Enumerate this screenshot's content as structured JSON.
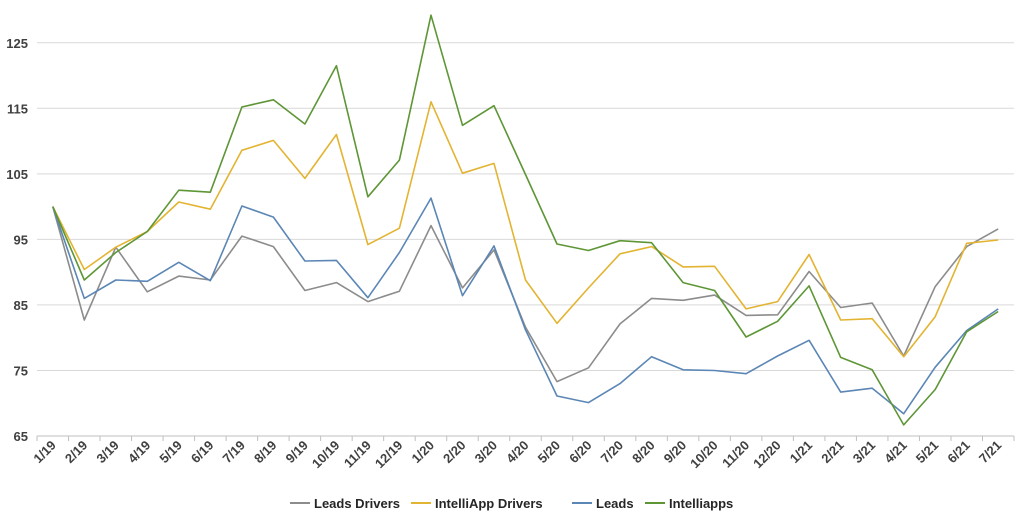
{
  "chart_data": {
    "type": "line",
    "categories": [
      "1/19",
      "2/19",
      "3/19",
      "4/19",
      "5/19",
      "6/19",
      "7/19",
      "8/19",
      "9/19",
      "10/19",
      "11/19",
      "12/19",
      "1/20",
      "2/20",
      "3/20",
      "4/20",
      "5/20",
      "6/20",
      "7/20",
      "8/20",
      "9/20",
      "10/20",
      "11/20",
      "12/20",
      "1/21",
      "2/21",
      "3/21",
      "4/21",
      "5/21",
      "6/21",
      "7/21"
    ],
    "ylim": [
      65,
      130
    ],
    "yticks": [
      65,
      75,
      85,
      95,
      105,
      115,
      125
    ],
    "grid": true,
    "legend_position": "bottom",
    "series": [
      {
        "name": "Leads Drivers",
        "color": "#8c8c8c",
        "values": [
          100,
          82.7,
          93.8,
          87,
          89.4,
          88.8,
          95.5,
          93.9,
          87.2,
          88.4,
          85.5,
          87.1,
          97.1,
          87.6,
          93.4,
          81.6,
          73.3,
          75.4,
          82.1,
          86,
          85.7,
          86.5,
          83.4,
          83.5,
          90.1,
          84.6,
          85.3,
          77.2,
          87.8,
          93.9,
          96.6
        ]
      },
      {
        "name": "IntelliApp Drivers",
        "color": "#e3b432",
        "values": [
          100,
          90.4,
          93.8,
          96.2,
          100.7,
          99.6,
          108.6,
          110.1,
          104.3,
          111,
          94.2,
          96.7,
          116,
          105.1,
          106.6,
          88.8,
          82.2,
          87.6,
          92.8,
          93.9,
          90.8,
          90.9,
          84.4,
          85.5,
          92.7,
          82.7,
          82.9,
          77.1,
          83.2,
          94.4,
          94.9
        ]
      },
      {
        "name": "Leads",
        "color": "#5b86b5",
        "values": [
          100,
          86,
          88.8,
          88.6,
          91.5,
          88.7,
          100.1,
          98.4,
          91.7,
          91.8,
          86.1,
          93,
          101.3,
          86.4,
          94,
          81.2,
          71.1,
          70.1,
          73,
          77.1,
          75.1,
          75,
          74.5,
          77.2,
          79.6,
          71.7,
          72.3,
          68.4,
          75.5,
          81.1,
          84.4
        ]
      },
      {
        "name": "Intelliapps",
        "color": "#5e9636",
        "values": [
          100,
          88.8,
          93,
          96.2,
          102.5,
          102.2,
          115.2,
          116.3,
          112.6,
          121.5,
          101.5,
          107.1,
          129.2,
          112.4,
          115.4,
          104.9,
          94.3,
          93.3,
          94.8,
          94.5,
          88.4,
          87.2,
          80.1,
          82.5,
          87.9,
          77,
          75.1,
          66.7,
          72.1,
          80.9,
          84
        ]
      }
    ]
  }
}
